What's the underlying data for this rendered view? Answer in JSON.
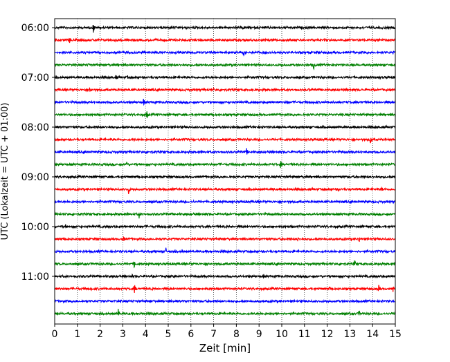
{
  "chart_data": {
    "type": "line",
    "chart_kind": "helicorder",
    "xlabel": "Zeit  [min]",
    "ylabel": "UTC (Lokalzeit = UTC + 01:00)",
    "xlim": [
      0,
      15
    ],
    "x_ticks": [
      0,
      1,
      2,
      3,
      4,
      5,
      6,
      7,
      8,
      9,
      10,
      11,
      12,
      13,
      14,
      15
    ],
    "x_grid": "vertical dotted lines at each minute",
    "y_ticks": [
      {
        "label": "06:00",
        "trace": 0
      },
      {
        "label": "07:00",
        "trace": 4
      },
      {
        "label": "08:00",
        "trace": 8
      },
      {
        "label": "09:00",
        "trace": 12
      },
      {
        "label": "10:00",
        "trace": 16
      },
      {
        "label": "11:00",
        "trace": 20
      }
    ],
    "minutes_per_trace": 15,
    "color_cycle": [
      "#000000",
      "#ff0000",
      "#0000ff",
      "#008000"
    ],
    "series": [
      {
        "values": [
          {
            "x": 1.7,
            "amp": 9
          },
          {
            "x": 8.3,
            "amp": 4
          },
          {
            "x": 13.3,
            "amp": 2
          },
          {
            "x": 14.6,
            "amp": 2
          }
        ]
      },
      {
        "values": [
          {
            "x": 0.65,
            "amp": 5
          },
          {
            "x": 13.6,
            "amp": 2
          }
        ]
      },
      {
        "values": [
          {
            "x": 8.3,
            "amp": 8
          },
          {
            "x": 11.2,
            "amp": 2
          },
          {
            "x": 14.9,
            "amp": 3
          }
        ]
      },
      {
        "values": [
          {
            "x": 1.5,
            "amp": 4
          },
          {
            "x": 2.8,
            "amp": 4
          },
          {
            "x": 11.4,
            "amp": 8
          }
        ]
      },
      {
        "values": [
          {
            "x": 2.7,
            "amp": 5
          },
          {
            "x": 3.2,
            "amp": 3
          },
          {
            "x": 5.3,
            "amp": 3
          }
        ]
      },
      {
        "values": [
          {
            "x": 1.55,
            "amp": 8
          },
          {
            "x": 7.0,
            "amp": 3
          },
          {
            "x": 9.2,
            "amp": 5
          },
          {
            "x": 11.2,
            "amp": 3
          }
        ]
      },
      {
        "values": [
          {
            "x": 2.6,
            "amp": 3
          },
          {
            "x": 3.9,
            "amp": 8
          },
          {
            "x": 10.2,
            "amp": 6
          },
          {
            "x": 13.5,
            "amp": 4
          }
        ]
      },
      {
        "values": [
          {
            "x": 4.05,
            "amp": 8
          }
        ]
      },
      {
        "values": [
          {
            "x": 2.5,
            "amp": 3
          },
          {
            "x": 9.1,
            "amp": 3
          }
        ]
      },
      {
        "values": [
          {
            "x": 3.5,
            "amp": 4
          },
          {
            "x": 13.9,
            "amp": 9
          }
        ]
      },
      {
        "values": [
          {
            "x": 5.5,
            "amp": 3
          },
          {
            "x": 8.45,
            "amp": 6
          }
        ]
      },
      {
        "values": [
          {
            "x": 3.15,
            "amp": 8
          },
          {
            "x": 9.95,
            "amp": 6
          }
        ]
      },
      {
        "values": [
          {
            "x": 9.0,
            "amp": 4
          },
          {
            "x": 10.2,
            "amp": 3
          }
        ]
      },
      {
        "values": [
          {
            "x": 3.25,
            "amp": 8
          },
          {
            "x": 9.6,
            "amp": 5
          },
          {
            "x": 12.5,
            "amp": 4
          },
          {
            "x": 14.4,
            "amp": 4
          }
        ]
      },
      {
        "values": [
          {
            "x": 6.1,
            "amp": 3
          },
          {
            "x": 10.3,
            "amp": 3
          }
        ]
      },
      {
        "values": [
          {
            "x": 3.7,
            "amp": 9
          },
          {
            "x": 4.8,
            "amp": 4
          }
        ]
      },
      {
        "values": [
          {
            "x": 0.45,
            "amp": 6
          },
          {
            "x": 10.4,
            "amp": 3
          }
        ]
      },
      {
        "values": [
          {
            "x": 3.0,
            "amp": 8
          },
          {
            "x": 10.7,
            "amp": 4
          },
          {
            "x": 13.4,
            "amp": 7
          }
        ]
      },
      {
        "values": [
          {
            "x": 4.9,
            "amp": 6
          },
          {
            "x": 5.6,
            "amp": 4
          }
        ]
      },
      {
        "values": [
          {
            "x": 3.5,
            "amp": 8
          },
          {
            "x": 13.2,
            "amp": 6
          },
          {
            "x": 14.3,
            "amp": 4
          }
        ]
      },
      {
        "values": [
          {
            "x": 3.4,
            "amp": 4
          },
          {
            "x": 9.2,
            "amp": 4
          }
        ]
      },
      {
        "values": [
          {
            "x": 3.5,
            "amp": 9
          },
          {
            "x": 12.1,
            "amp": 5
          },
          {
            "x": 14.25,
            "amp": 8
          },
          {
            "x": 14.9,
            "amp": 5
          }
        ]
      },
      {
        "values": [
          {
            "x": 5.7,
            "amp": 3
          }
        ]
      },
      {
        "values": [
          {
            "x": 2.8,
            "amp": 8
          },
          {
            "x": 13.4,
            "amp": 6
          }
        ]
      }
    ]
  }
}
